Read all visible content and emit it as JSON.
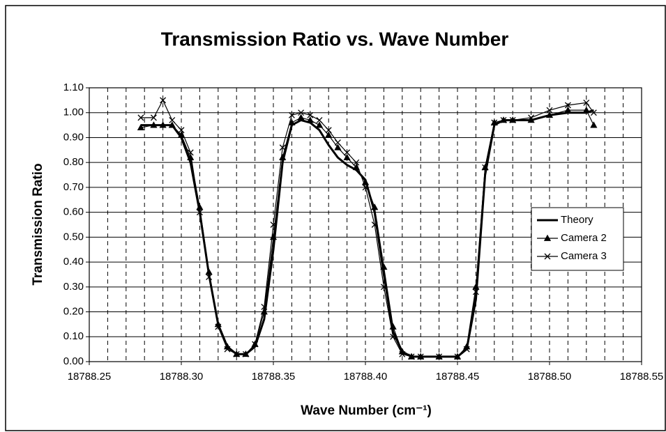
{
  "chart_data": {
    "type": "line",
    "title": "Transmission Ratio vs. Wave Number",
    "x_label": "Wave Number (cm⁻¹)",
    "y_label": "Transmission Ratio",
    "x": [
      18788.278,
      18788.285,
      18788.29,
      18788.295,
      18788.3,
      18788.305,
      18788.31,
      18788.315,
      18788.32,
      18788.325,
      18788.33,
      18788.335,
      18788.34,
      18788.345,
      18788.35,
      18788.355,
      18788.36,
      18788.365,
      18788.37,
      18788.375,
      18788.38,
      18788.385,
      18788.39,
      18788.395,
      18788.4,
      18788.405,
      18788.41,
      18788.415,
      18788.42,
      18788.425,
      18788.43,
      18788.44,
      18788.45,
      18788.455,
      18788.46,
      18788.465,
      18788.47,
      18788.475,
      18788.48,
      18788.49,
      18788.5,
      18788.51,
      18788.52,
      18788.524
    ],
    "series": [
      {
        "name": "Theory",
        "color": "#000000",
        "marker": "none",
        "values": [
          0.95,
          0.95,
          0.95,
          0.95,
          0.9,
          0.8,
          0.6,
          0.35,
          0.15,
          0.06,
          0.03,
          0.03,
          0.06,
          0.17,
          0.45,
          0.8,
          0.95,
          0.97,
          0.96,
          0.93,
          0.87,
          0.82,
          0.79,
          0.77,
          0.73,
          0.6,
          0.35,
          0.12,
          0.04,
          0.02,
          0.02,
          0.02,
          0.02,
          0.05,
          0.25,
          0.75,
          0.95,
          0.97,
          0.97,
          0.97,
          0.99,
          1.0,
          1.0,
          1.01
        ]
      },
      {
        "name": "Camera 2",
        "color": "#000000",
        "marker": "triangle",
        "values": [
          0.94,
          0.95,
          0.95,
          0.95,
          0.91,
          0.82,
          0.62,
          0.36,
          0.15,
          0.06,
          0.03,
          0.03,
          0.07,
          0.2,
          0.5,
          0.82,
          0.96,
          0.98,
          0.97,
          0.95,
          0.91,
          0.86,
          0.82,
          0.78,
          0.72,
          0.62,
          0.38,
          0.14,
          0.04,
          0.02,
          0.02,
          0.02,
          0.02,
          0.06,
          0.3,
          0.78,
          0.96,
          0.97,
          0.97,
          0.97,
          0.99,
          1.01,
          1.01,
          0.95
        ]
      },
      {
        "name": "Camera 3",
        "color": "#000000",
        "marker": "x",
        "values": [
          0.98,
          0.98,
          1.05,
          0.97,
          0.93,
          0.84,
          0.6,
          0.34,
          0.14,
          0.05,
          0.03,
          0.03,
          0.07,
          0.22,
          0.55,
          0.86,
          0.99,
          1.0,
          0.99,
          0.97,
          0.93,
          0.88,
          0.84,
          0.8,
          0.7,
          0.55,
          0.3,
          0.1,
          0.03,
          0.02,
          0.02,
          0.02,
          0.02,
          0.05,
          0.28,
          0.78,
          0.96,
          0.97,
          0.97,
          0.98,
          1.01,
          1.03,
          1.04,
          1.0
        ]
      }
    ],
    "xlim": [
      18788.25,
      18788.55
    ],
    "xticks": [
      18788.25,
      {
        "value": 18788.3,
        "label": "18788.30"
      },
      18788.35,
      {
        "value": 18788.4,
        "label": "18788.40"
      },
      18788.45,
      {
        "value": 18788.5,
        "label": "18788.50"
      },
      18788.55
    ],
    "xminorticks": [
      18788.26,
      18788.27,
      18788.28,
      18788.29,
      18788.31,
      18788.32,
      18788.33,
      18788.34,
      18788.36,
      18788.37,
      18788.38,
      18788.39,
      18788.41,
      18788.42,
      18788.43,
      18788.44,
      18788.46,
      18788.47,
      18788.48,
      18788.49,
      18788.51,
      18788.52,
      18788.53,
      18788.54
    ],
    "ylim": [
      0,
      1.1
    ],
    "yticks": [
      {
        "value": 0,
        "label": "0.00"
      },
      {
        "value": 0.1,
        "label": "0.10"
      },
      {
        "value": 0.2,
        "label": "0.20"
      },
      {
        "value": 0.3,
        "label": "0.30"
      },
      {
        "value": 0.4,
        "label": "0.40"
      },
      {
        "value": 0.5,
        "label": "0.50"
      },
      {
        "value": 0.6,
        "label": "0.60"
      },
      {
        "value": 0.7,
        "label": "0.70"
      },
      {
        "value": 0.8,
        "label": "0.80"
      },
      {
        "value": 0.9,
        "label": "0.90"
      },
      {
        "value": 1,
        "label": "1.00"
      },
      {
        "value": 1.1,
        "label": "1.10"
      }
    ],
    "grid": true,
    "legend": "right"
  }
}
